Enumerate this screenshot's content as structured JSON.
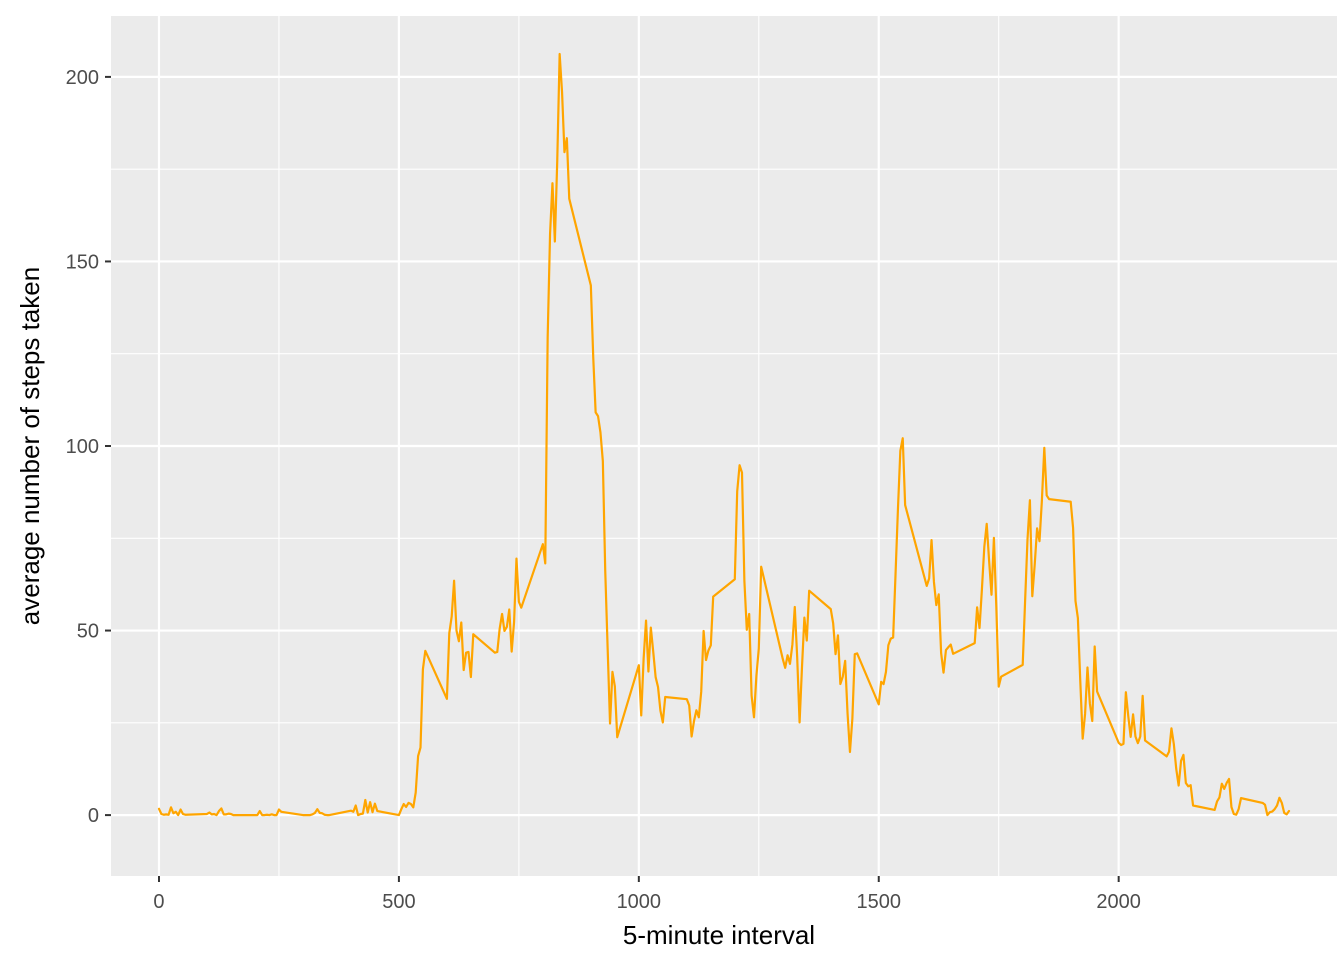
{
  "chart_data": {
    "type": "line",
    "title": "",
    "xlabel": "5-minute interval",
    "ylabel": "average number of steps taken",
    "xlim": [
      -100,
      2455
    ],
    "ylim": [
      -16.5,
      216.5
    ],
    "x_ticks": [
      0,
      500,
      1000,
      1500,
      2000
    ],
    "x_tick_labels": [
      "0",
      "500",
      "1000",
      "1500",
      "2000"
    ],
    "y_ticks": [
      0,
      50,
      100,
      150,
      200
    ],
    "y_tick_labels": [
      "0",
      "50",
      "100",
      "150",
      "200"
    ],
    "grid": true,
    "legend": "none",
    "colors": {
      "line": "#FFA500",
      "panel": "#EBEBEB",
      "grid": "#FFFFFF",
      "tick_text": "#4D4D4D"
    },
    "series": [
      {
        "values": [
          [
            0,
            1.7
          ],
          [
            5,
            0.3
          ],
          [
            10,
            0.1
          ],
          [
            15,
            0.2
          ],
          [
            20,
            0.1
          ],
          [
            25,
            2.1
          ],
          [
            30,
            0.5
          ],
          [
            35,
            0.9
          ],
          [
            40,
            0.0
          ],
          [
            45,
            1.5
          ],
          [
            50,
            0.3
          ],
          [
            55,
            0.1
          ],
          [
            100,
            0.3
          ],
          [
            105,
            0.7
          ],
          [
            110,
            0.2
          ],
          [
            115,
            0.3
          ],
          [
            120,
            0.0
          ],
          [
            125,
            1.1
          ],
          [
            130,
            1.8
          ],
          [
            135,
            0.2
          ],
          [
            140,
            0.2
          ],
          [
            145,
            0.4
          ],
          [
            150,
            0.3
          ],
          [
            155,
            0.0
          ],
          [
            200,
            0.0
          ],
          [
            205,
            0.0
          ],
          [
            210,
            1.1
          ],
          [
            215,
            0.0
          ],
          [
            220,
            0.0
          ],
          [
            225,
            0.1
          ],
          [
            230,
            0.0
          ],
          [
            235,
            0.2
          ],
          [
            240,
            0.0
          ],
          [
            245,
            0.0
          ],
          [
            250,
            1.5
          ],
          [
            255,
            0.9
          ],
          [
            300,
            0.0
          ],
          [
            305,
            0.0
          ],
          [
            310,
            0.0
          ],
          [
            315,
            0.0
          ],
          [
            320,
            0.2
          ],
          [
            325,
            0.6
          ],
          [
            330,
            1.6
          ],
          [
            335,
            0.6
          ],
          [
            340,
            0.5
          ],
          [
            345,
            0.1
          ],
          [
            350,
            0.0
          ],
          [
            355,
            0.0
          ],
          [
            400,
            1.2
          ],
          [
            405,
            0.9
          ],
          [
            410,
            2.6
          ],
          [
            415,
            0.0
          ],
          [
            420,
            0.3
          ],
          [
            425,
            0.4
          ],
          [
            430,
            4.1
          ],
          [
            435,
            0.7
          ],
          [
            440,
            3.5
          ],
          [
            445,
            0.8
          ],
          [
            450,
            3.1
          ],
          [
            455,
            1.1
          ],
          [
            500,
            0.0
          ],
          [
            505,
            1.6
          ],
          [
            510,
            3.0
          ],
          [
            515,
            2.2
          ],
          [
            520,
            3.3
          ],
          [
            525,
            3.0
          ],
          [
            530,
            2.1
          ],
          [
            535,
            6.1
          ],
          [
            540,
            16.0
          ],
          [
            545,
            18.3
          ],
          [
            550,
            39.5
          ],
          [
            555,
            44.5
          ],
          [
            600,
            31.5
          ],
          [
            605,
            49.3
          ],
          [
            610,
            53.8
          ],
          [
            615,
            63.5
          ],
          [
            620,
            50.0
          ],
          [
            625,
            47.1
          ],
          [
            630,
            52.2
          ],
          [
            635,
            39.3
          ],
          [
            640,
            44.0
          ],
          [
            645,
            44.2
          ],
          [
            650,
            37.4
          ],
          [
            655,
            49.0
          ],
          [
            700,
            44.0
          ],
          [
            705,
            44.2
          ],
          [
            710,
            50.5
          ],
          [
            715,
            54.5
          ],
          [
            720,
            49.9
          ],
          [
            725,
            51.0
          ],
          [
            730,
            55.7
          ],
          [
            735,
            44.3
          ],
          [
            740,
            52.3
          ],
          [
            745,
            69.5
          ],
          [
            750,
            57.8
          ],
          [
            755,
            56.2
          ],
          [
            800,
            73.4
          ],
          [
            805,
            68.2
          ],
          [
            810,
            129.4
          ],
          [
            815,
            157.5
          ],
          [
            820,
            171.2
          ],
          [
            825,
            155.4
          ],
          [
            830,
            177.3
          ],
          [
            835,
            206.2
          ],
          [
            840,
            195.9
          ],
          [
            845,
            179.6
          ],
          [
            850,
            183.4
          ],
          [
            855,
            167.0
          ],
          [
            900,
            143.5
          ],
          [
            905,
            124.0
          ],
          [
            910,
            109.1
          ],
          [
            915,
            108.1
          ],
          [
            920,
            103.7
          ],
          [
            925,
            95.9
          ],
          [
            930,
            66.2
          ],
          [
            935,
            45.2
          ],
          [
            940,
            24.8
          ],
          [
            945,
            38.8
          ],
          [
            950,
            34.9
          ],
          [
            955,
            21.1
          ],
          [
            1000,
            40.6
          ],
          [
            1005,
            27.0
          ],
          [
            1010,
            42.4
          ],
          [
            1015,
            52.7
          ],
          [
            1020,
            38.9
          ],
          [
            1025,
            50.8
          ],
          [
            1030,
            44.3
          ],
          [
            1035,
            37.4
          ],
          [
            1040,
            34.7
          ],
          [
            1045,
            28.3
          ],
          [
            1050,
            25.1
          ],
          [
            1055,
            32.0
          ],
          [
            1100,
            31.4
          ],
          [
            1105,
            29.7
          ],
          [
            1110,
            21.3
          ],
          [
            1115,
            25.5
          ],
          [
            1120,
            28.4
          ],
          [
            1125,
            26.5
          ],
          [
            1130,
            33.4
          ],
          [
            1135,
            49.9
          ],
          [
            1140,
            42.0
          ],
          [
            1145,
            44.6
          ],
          [
            1150,
            46.0
          ],
          [
            1155,
            59.2
          ],
          [
            1200,
            63.9
          ],
          [
            1205,
            87.7
          ],
          [
            1210,
            94.8
          ],
          [
            1215,
            92.8
          ],
          [
            1220,
            63.4
          ],
          [
            1225,
            50.2
          ],
          [
            1230,
            54.5
          ],
          [
            1235,
            32.4
          ],
          [
            1240,
            26.5
          ],
          [
            1245,
            37.7
          ],
          [
            1250,
            45.1
          ],
          [
            1255,
            67.3
          ],
          [
            1300,
            42.3
          ],
          [
            1305,
            39.9
          ],
          [
            1310,
            43.3
          ],
          [
            1315,
            40.98
          ],
          [
            1320,
            46.2
          ],
          [
            1325,
            56.4
          ],
          [
            1330,
            42.8
          ],
          [
            1335,
            25.1
          ],
          [
            1340,
            39.97
          ],
          [
            1345,
            53.5
          ],
          [
            1350,
            47.3
          ],
          [
            1355,
            60.8
          ],
          [
            1400,
            55.8
          ],
          [
            1405,
            51.96
          ],
          [
            1410,
            43.6
          ],
          [
            1415,
            48.7
          ],
          [
            1420,
            35.5
          ],
          [
            1425,
            37.5
          ],
          [
            1430,
            41.8
          ],
          [
            1435,
            27.5
          ],
          [
            1440,
            17.1
          ],
          [
            1445,
            26.1
          ],
          [
            1450,
            43.6
          ],
          [
            1455,
            43.8
          ],
          [
            1500,
            30.0
          ],
          [
            1505,
            36.1
          ],
          [
            1510,
            35.5
          ],
          [
            1515,
            38.8
          ],
          [
            1520,
            46.0
          ],
          [
            1525,
            47.8
          ],
          [
            1530,
            48.1
          ],
          [
            1535,
            65.3
          ],
          [
            1540,
            82.9
          ],
          [
            1545,
            98.7
          ],
          [
            1550,
            102.1
          ],
          [
            1555,
            84.0
          ],
          [
            1600,
            62.1
          ],
          [
            1605,
            64.1
          ],
          [
            1610,
            74.5
          ],
          [
            1615,
            63.2
          ],
          [
            1620,
            56.9
          ],
          [
            1625,
            59.8
          ],
          [
            1630,
            43.9
          ],
          [
            1635,
            38.6
          ],
          [
            1640,
            44.7
          ],
          [
            1645,
            45.5
          ],
          [
            1650,
            46.2
          ],
          [
            1655,
            43.7
          ],
          [
            1700,
            46.6
          ],
          [
            1705,
            56.3
          ],
          [
            1710,
            50.7
          ],
          [
            1715,
            61.2
          ],
          [
            1720,
            72.7
          ],
          [
            1725,
            78.9
          ],
          [
            1730,
            68.9
          ],
          [
            1735,
            59.7
          ],
          [
            1740,
            75.1
          ],
          [
            1745,
            56.5
          ],
          [
            1750,
            34.8
          ],
          [
            1755,
            37.5
          ],
          [
            1800,
            40.7
          ],
          [
            1805,
            58.0
          ],
          [
            1810,
            74.7
          ],
          [
            1815,
            85.3
          ],
          [
            1820,
            59.3
          ],
          [
            1825,
            67.8
          ],
          [
            1830,
            77.7
          ],
          [
            1835,
            74.2
          ],
          [
            1840,
            85.3
          ],
          [
            1845,
            99.5
          ],
          [
            1850,
            86.6
          ],
          [
            1855,
            85.6
          ],
          [
            1900,
            84.9
          ],
          [
            1905,
            77.8
          ],
          [
            1910,
            58.0
          ],
          [
            1915,
            53.4
          ],
          [
            1920,
            36.3
          ],
          [
            1925,
            20.7
          ],
          [
            1930,
            27.4
          ],
          [
            1935,
            40.0
          ],
          [
            1940,
            30.2
          ],
          [
            1945,
            25.5
          ],
          [
            1950,
            45.7
          ],
          [
            1955,
            33.5
          ],
          [
            2000,
            19.6
          ],
          [
            2005,
            19.0
          ],
          [
            2010,
            19.3
          ],
          [
            2015,
            33.3
          ],
          [
            2020,
            26.8
          ],
          [
            2025,
            21.2
          ],
          [
            2030,
            27.3
          ],
          [
            2035,
            21.3
          ],
          [
            2040,
            19.5
          ],
          [
            2045,
            21.3
          ],
          [
            2050,
            32.3
          ],
          [
            2055,
            20.2
          ],
          [
            2100,
            15.9
          ],
          [
            2105,
            17.2
          ],
          [
            2110,
            23.5
          ],
          [
            2115,
            19.2
          ],
          [
            2120,
            12.5
          ],
          [
            2125,
            8.0
          ],
          [
            2130,
            14.7
          ],
          [
            2135,
            16.3
          ],
          [
            2140,
            8.7
          ],
          [
            2145,
            7.8
          ],
          [
            2150,
            8.1
          ],
          [
            2155,
            2.6
          ],
          [
            2200,
            1.4
          ],
          [
            2205,
            3.7
          ],
          [
            2210,
            4.8
          ],
          [
            2215,
            8.5
          ],
          [
            2220,
            7.1
          ],
          [
            2225,
            8.7
          ],
          [
            2230,
            9.8
          ],
          [
            2235,
            2.2
          ],
          [
            2240,
            0.3
          ],
          [
            2245,
            0.1
          ],
          [
            2250,
            1.6
          ],
          [
            2255,
            4.6
          ],
          [
            2300,
            3.3
          ],
          [
            2305,
            2.8
          ],
          [
            2310,
            0.0
          ],
          [
            2315,
            0.8
          ],
          [
            2320,
            0.96
          ],
          [
            2325,
            1.6
          ],
          [
            2330,
            2.6
          ],
          [
            2335,
            4.7
          ],
          [
            2340,
            3.3
          ],
          [
            2345,
            0.6
          ],
          [
            2350,
            0.2
          ],
          [
            2355,
            1.1
          ]
        ]
      }
    ]
  }
}
